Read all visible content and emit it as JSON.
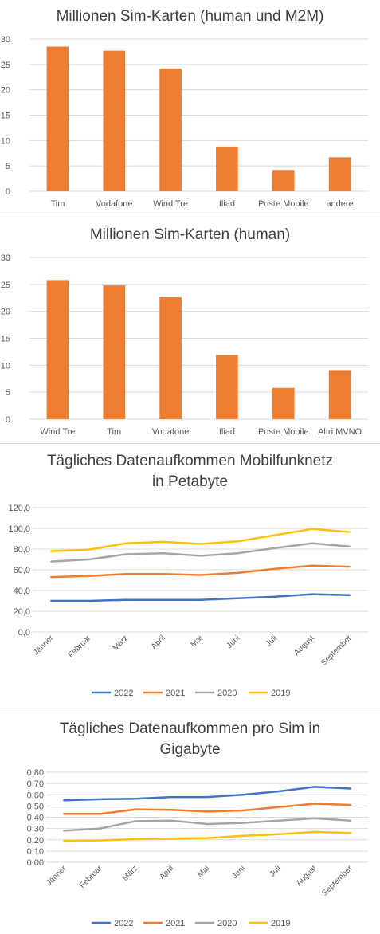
{
  "colors": {
    "bar": "#ed7d31",
    "grid": "#d9d9d9",
    "axis_text": "#595959",
    "title_text": "#404040",
    "series_2022": "#4472c4",
    "series_2021": "#ed7d31",
    "series_2020": "#a5a5a5",
    "series_2019": "#ffc000"
  },
  "chart_data": [
    {
      "type": "bar",
      "title": "Millionen Sim-Karten (human und M2M)",
      "categories": [
        "Tim",
        "Vodafone",
        "Wind Tre",
        "Iliad",
        "Poste Mobile",
        "andere"
      ],
      "values": [
        28.5,
        27.7,
        24.2,
        8.8,
        4.2,
        6.7
      ],
      "ylim": [
        0,
        30
      ],
      "yticks": [
        "0",
        "5",
        "10",
        "15",
        "20",
        "25",
        "30"
      ],
      "grid": true
    },
    {
      "type": "bar",
      "title": "Millionen Sim-Karten (human)",
      "categories": [
        "Wind Tre",
        "Tim",
        "Vodafone",
        "Iliad",
        "Poste Mobile",
        "Altri MVNO"
      ],
      "values": [
        25.8,
        24.8,
        22.6,
        11.9,
        5.8,
        9.1
      ],
      "ylim": [
        0,
        30
      ],
      "yticks": [
        "0",
        "5",
        "10",
        "15",
        "20",
        "25",
        "30"
      ],
      "grid": true
    },
    {
      "type": "line",
      "title_lines": [
        "Tägliches Datenaufkommen Mobilfunknetz",
        "in Petabyte"
      ],
      "categories": [
        "Jänner",
        "Februar",
        "März",
        "April",
        "Mai",
        "Juni",
        "Juli",
        "August",
        "September"
      ],
      "ylim": [
        0,
        120
      ],
      "yticks": [
        "0,0",
        "20,0",
        "40,0",
        "60,0",
        "80,0",
        "100,0",
        "120,0"
      ],
      "grid": true,
      "legend_position": "bottom",
      "series": [
        {
          "name": "2022",
          "values": [
            30.0,
            30.0,
            31.0,
            31.0,
            31.0,
            32.5,
            34.0,
            36.5,
            35.5
          ]
        },
        {
          "name": "2021",
          "values": [
            53.0,
            54.0,
            56.0,
            56.0,
            55.0,
            57.0,
            61.0,
            64.0,
            63.0
          ]
        },
        {
          "name": "2020",
          "values": [
            68.0,
            70.0,
            75.0,
            76.0,
            73.5,
            76.0,
            81.0,
            85.5,
            82.5
          ]
        },
        {
          "name": "2019",
          "values": [
            78.0,
            79.5,
            85.5,
            87.0,
            85.0,
            87.5,
            93.5,
            99.5,
            96.5
          ]
        }
      ]
    },
    {
      "type": "line",
      "title_lines": [
        "Tägliches Datenaufkommen pro Sim in",
        "Gigabyte"
      ],
      "categories": [
        "Jänner",
        "Februar",
        "März",
        "April",
        "Mai",
        "Juni",
        "Juli",
        "August",
        "September"
      ],
      "ylim": [
        0,
        0.8
      ],
      "yticks": [
        "0,00",
        "0,10",
        "0,20",
        "0,30",
        "0,40",
        "0,50",
        "0,60",
        "0,70",
        "0,80"
      ],
      "grid": true,
      "legend_position": "bottom",
      "series": [
        {
          "name": "2022",
          "values": [
            0.55,
            0.56,
            0.565,
            0.58,
            0.58,
            0.6,
            0.63,
            0.67,
            0.655
          ]
        },
        {
          "name": "2021",
          "values": [
            0.43,
            0.43,
            0.47,
            0.465,
            0.45,
            0.46,
            0.49,
            0.52,
            0.51
          ]
        },
        {
          "name": "2020",
          "values": [
            0.28,
            0.3,
            0.365,
            0.37,
            0.34,
            0.35,
            0.37,
            0.39,
            0.37
          ]
        },
        {
          "name": "2019",
          "values": [
            0.19,
            0.195,
            0.205,
            0.21,
            0.215,
            0.235,
            0.25,
            0.27,
            0.26
          ]
        }
      ]
    }
  ]
}
